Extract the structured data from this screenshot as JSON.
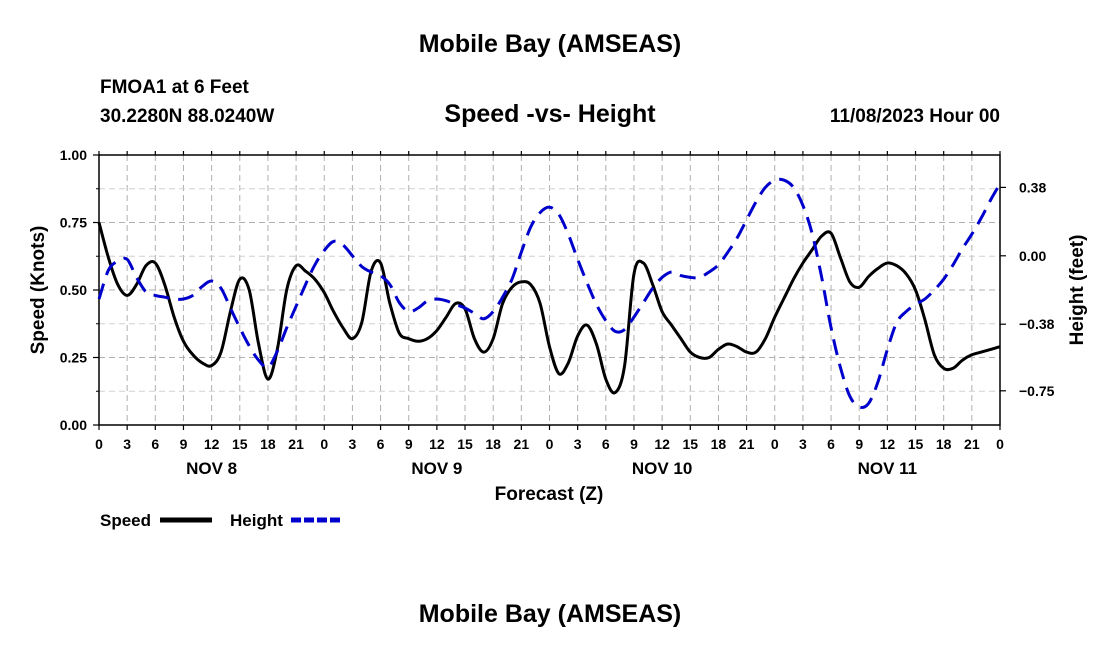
{
  "header": {
    "title": "Mobile Bay (AMSEAS)",
    "station": "FMOA1 at 6 Feet",
    "coords": "30.2280N  88.0240W",
    "subtitle": "Speed -vs- Height",
    "datetime": "11/08/2023 Hour 00",
    "bottom_title": "Mobile Bay (AMSEAS)"
  },
  "chart_data": {
    "type": "line",
    "xlabel": "Forecast (Z)",
    "ylabel": "Speed (Knots)",
    "y2label": "Height (feet)",
    "xlim": [
      0,
      96
    ],
    "ylim": [
      0,
      1
    ],
    "y2lim": [
      -0.94,
      0.56
    ],
    "x_ticks": [
      0,
      3,
      6,
      9,
      12,
      15,
      18,
      21,
      24,
      27,
      30,
      33,
      36,
      39,
      42,
      45,
      48,
      51,
      54,
      57,
      60,
      63,
      66,
      69,
      72,
      75,
      78,
      81,
      84,
      87,
      90,
      93,
      96
    ],
    "x_tick_labels": [
      "0",
      "3",
      "6",
      "9",
      "12",
      "15",
      "18",
      "21",
      "0",
      "3",
      "6",
      "9",
      "12",
      "15",
      "18",
      "21",
      "0",
      "3",
      "6",
      "9",
      "12",
      "15",
      "18",
      "21",
      "0",
      "3",
      "6",
      "9",
      "12",
      "15",
      "18",
      "21",
      "0"
    ],
    "day_labels": [
      {
        "x": 12,
        "label": "NOV 8"
      },
      {
        "x": 36,
        "label": "NOV 9"
      },
      {
        "x": 60,
        "label": "NOV 10"
      },
      {
        "x": 84,
        "label": "NOV 11"
      }
    ],
    "y_ticks": [
      0,
      0.25,
      0.5,
      0.75,
      1
    ],
    "y_tick_labels": [
      "0.00",
      "0.25",
      "0.50",
      "0.75",
      "1.00"
    ],
    "y2_ticks": [
      0.38,
      0,
      -0.38,
      -0.75
    ],
    "y2_tick_labels": [
      "0.38",
      "0.00",
      "−0.38",
      "−0.75"
    ],
    "series": [
      {
        "name": "Speed",
        "axis": "left",
        "color": "#000000",
        "dash": "solid",
        "x": [
          0,
          1,
          2,
          3,
          4,
          5,
          6,
          7,
          8,
          9,
          10,
          11,
          12,
          13,
          14,
          15,
          16,
          17,
          18,
          19,
          20,
          21,
          22,
          23,
          24,
          25,
          26,
          27,
          28,
          29,
          30,
          31,
          32,
          33,
          34,
          35,
          36,
          37,
          38,
          39,
          40,
          41,
          42,
          43,
          44,
          45,
          46,
          47,
          48,
          49,
          50,
          51,
          52,
          53,
          54,
          55,
          56,
          57,
          58,
          59,
          60,
          61,
          62,
          63,
          64,
          65,
          66,
          67,
          68,
          69,
          70,
          71,
          72,
          73,
          74,
          75,
          76,
          77,
          78,
          79,
          80,
          81,
          82,
          83,
          84,
          85,
          86,
          87,
          88,
          89,
          90,
          91,
          92,
          93,
          94,
          95,
          96
        ],
        "values": [
          0.75,
          0.62,
          0.52,
          0.48,
          0.52,
          0.59,
          0.6,
          0.52,
          0.4,
          0.31,
          0.26,
          0.23,
          0.22,
          0.27,
          0.42,
          0.54,
          0.5,
          0.3,
          0.17,
          0.28,
          0.5,
          0.59,
          0.57,
          0.54,
          0.49,
          0.42,
          0.36,
          0.32,
          0.38,
          0.57,
          0.6,
          0.45,
          0.34,
          0.32,
          0.31,
          0.32,
          0.35,
          0.4,
          0.45,
          0.43,
          0.32,
          0.27,
          0.32,
          0.45,
          0.51,
          0.53,
          0.52,
          0.45,
          0.29,
          0.19,
          0.23,
          0.33,
          0.37,
          0.3,
          0.17,
          0.12,
          0.22,
          0.56,
          0.6,
          0.52,
          0.42,
          0.37,
          0.32,
          0.27,
          0.25,
          0.25,
          0.28,
          0.3,
          0.29,
          0.27,
          0.27,
          0.32,
          0.4,
          0.47,
          0.54,
          0.6,
          0.65,
          0.7,
          0.71,
          0.62,
          0.53,
          0.51,
          0.55,
          0.58,
          0.6,
          0.59,
          0.56,
          0.5,
          0.39,
          0.26,
          0.21,
          0.21,
          0.24,
          0.26,
          0.27,
          0.28,
          0.29
        ]
      },
      {
        "name": "Height",
        "axis": "right",
        "color": "#0000cc",
        "dash": "dashed",
        "x": [
          0,
          1,
          2,
          3,
          4,
          5,
          6,
          7,
          8,
          9,
          10,
          11,
          12,
          13,
          14,
          15,
          16,
          17,
          18,
          19,
          20,
          21,
          22,
          23,
          24,
          25,
          26,
          27,
          28,
          29,
          30,
          31,
          32,
          33,
          34,
          35,
          36,
          37,
          38,
          39,
          40,
          41,
          42,
          43,
          44,
          45,
          46,
          47,
          48,
          49,
          50,
          51,
          52,
          53,
          54,
          55,
          56,
          57,
          58,
          59,
          60,
          61,
          62,
          63,
          64,
          65,
          66,
          67,
          68,
          69,
          70,
          71,
          72,
          73,
          74,
          75,
          76,
          77,
          78,
          79,
          80,
          81,
          82,
          83,
          84,
          85,
          86,
          87,
          88,
          89,
          90,
          91,
          92,
          93,
          94,
          95,
          96
        ],
        "values": [
          -0.24,
          -0.08,
          -0.03,
          -0.02,
          -0.12,
          -0.2,
          -0.22,
          -0.23,
          -0.24,
          -0.24,
          -0.22,
          -0.17,
          -0.14,
          -0.18,
          -0.29,
          -0.4,
          -0.5,
          -0.58,
          -0.62,
          -0.53,
          -0.4,
          -0.28,
          -0.16,
          -0.05,
          0.03,
          0.08,
          0.06,
          0.0,
          -0.06,
          -0.09,
          -0.11,
          -0.16,
          -0.26,
          -0.31,
          -0.29,
          -0.25,
          -0.24,
          -0.25,
          -0.27,
          -0.29,
          -0.32,
          -0.35,
          -0.31,
          -0.23,
          -0.13,
          0.02,
          0.16,
          0.24,
          0.27,
          0.23,
          0.12,
          -0.02,
          -0.15,
          -0.27,
          -0.36,
          -0.42,
          -0.41,
          -0.34,
          -0.26,
          -0.18,
          -0.12,
          -0.09,
          -0.11,
          -0.12,
          -0.12,
          -0.09,
          -0.05,
          0.02,
          0.1,
          0.2,
          0.3,
          0.38,
          0.42,
          0.42,
          0.38,
          0.28,
          0.12,
          -0.12,
          -0.4,
          -0.62,
          -0.78,
          -0.84,
          -0.82,
          -0.7,
          -0.52,
          -0.37,
          -0.31,
          -0.27,
          -0.24,
          -0.19,
          -0.13,
          -0.05,
          0.04,
          0.12,
          0.21,
          0.31,
          0.4
        ]
      }
    ],
    "legend": [
      {
        "label": "Speed",
        "color": "#000000",
        "dash": "solid"
      },
      {
        "label": "Height",
        "color": "#0000cc",
        "dash": "dashed"
      }
    ],
    "grid": true
  }
}
